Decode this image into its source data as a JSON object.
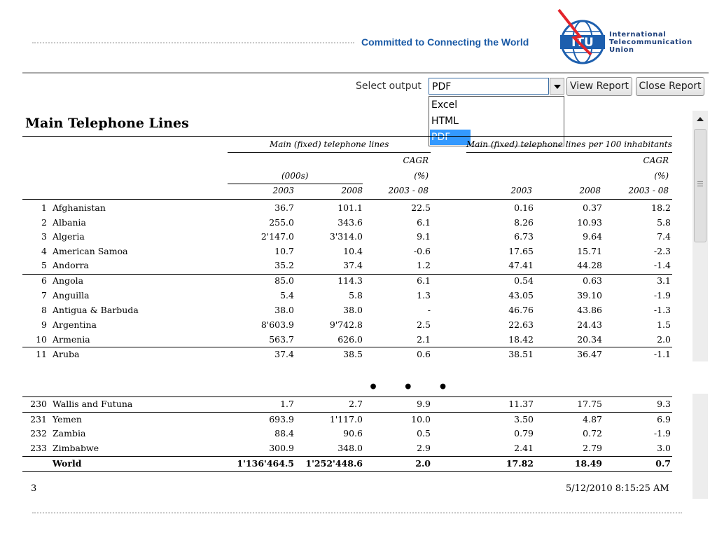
{
  "header": {
    "tagline": "Committed to Connecting the World",
    "logo_letters": "ITU",
    "org_name": [
      "International",
      "Telecommunication",
      "Union"
    ]
  },
  "toolbar": {
    "select_label": "Select output",
    "selected": "PDF",
    "options": [
      "Excel",
      "HTML",
      "PDF"
    ],
    "view_button": "View Report",
    "close_button": "Close Report"
  },
  "report": {
    "title": "Main Telephone Lines",
    "group1": "Main (fixed) telephone lines",
    "group2": "Main (fixed) telephone lines per 100 inhabitants",
    "cagr": "CAGR",
    "pct": "(%)",
    "unit": "(000s)",
    "y1": "2003",
    "y2": "2008",
    "period": "2003 - 08",
    "rows": [
      [
        "1",
        "Afghanistan",
        "36.7",
        "101.1",
        "22.5",
        "0.16",
        "0.37",
        "18.2"
      ],
      [
        "2",
        "Albania",
        "255.0",
        "343.6",
        "6.1",
        "8.26",
        "10.93",
        "5.8"
      ],
      [
        "3",
        "Algeria",
        "2'147.0",
        "3'314.0",
        "9.1",
        "6.73",
        "9.64",
        "7.4"
      ],
      [
        "4",
        "American Samoa",
        "10.7",
        "10.4",
        "-0.6",
        "17.65",
        "15.71",
        "-2.3"
      ],
      [
        "5",
        "Andorra",
        "35.2",
        "37.4",
        "1.2",
        "47.41",
        "44.28",
        "-1.4"
      ],
      [
        "6",
        "Angola",
        "85.0",
        "114.3",
        "6.1",
        "0.54",
        "0.63",
        "3.1"
      ],
      [
        "7",
        "Anguilla",
        "5.4",
        "5.8",
        "1.3",
        "43.05",
        "39.10",
        "-1.9"
      ],
      [
        "8",
        "Antigua & Barbuda",
        "38.0",
        "38.0",
        "-",
        "46.76",
        "43.86",
        "-1.3"
      ],
      [
        "9",
        "Argentina",
        "8'603.9",
        "9'742.8",
        "2.5",
        "22.63",
        "24.43",
        "1.5"
      ],
      [
        "10",
        "Armenia",
        "563.7",
        "626.0",
        "2.1",
        "18.42",
        "20.34",
        "2.0"
      ],
      [
        "11",
        "Aruba",
        "37.4",
        "38.5",
        "0.6",
        "38.51",
        "36.47",
        "-1.1"
      ]
    ],
    "ellipsis": "• • •",
    "tail_rows": [
      [
        "230",
        "Wallis and Futuna",
        "1.7",
        "2.7",
        "9.9",
        "11.37",
        "17.75",
        "9.3"
      ],
      [
        "231",
        "Yemen",
        "693.9",
        "1'117.0",
        "10.0",
        "3.50",
        "4.87",
        "6.9"
      ],
      [
        "232",
        "Zambia",
        "88.4",
        "90.6",
        "0.5",
        "0.79",
        "0.72",
        "-1.9"
      ],
      [
        "233",
        "Zimbabwe",
        "300.9",
        "348.0",
        "2.9",
        "2.41",
        "2.79",
        "3.0"
      ]
    ],
    "total": [
      "",
      "World",
      "1'136'464.5",
      "1'252'448.6",
      "2.0",
      "17.82",
      "18.49",
      "0.7"
    ],
    "page_number": "3",
    "timestamp": "5/12/2010 8:15:25 AM"
  }
}
